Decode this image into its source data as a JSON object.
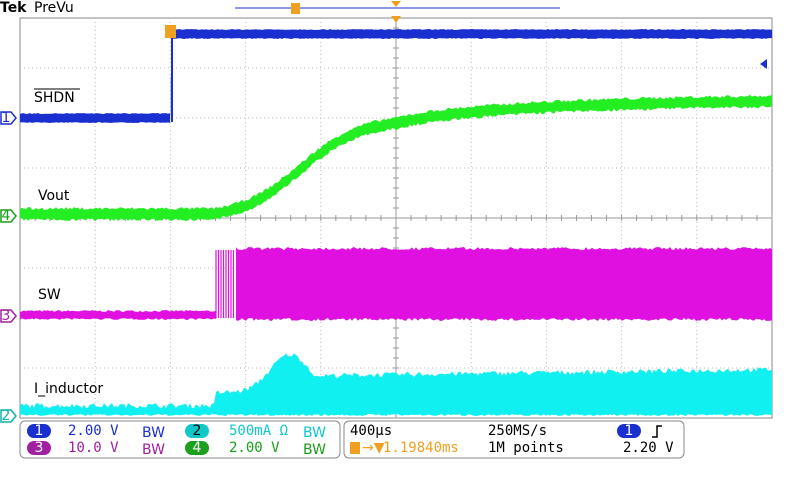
{
  "header": {
    "brand": "Tek",
    "mode": "PreVu"
  },
  "traces": [
    {
      "channel": "1",
      "label": "SHDN"
    },
    {
      "channel": "4",
      "label": "Vout"
    },
    {
      "channel": "3",
      "label": "SW"
    },
    {
      "channel": "2",
      "label": "I_inductor"
    }
  ],
  "readout": {
    "channels": [
      {
        "channel": "1",
        "scale": "2.00 V"
      },
      {
        "channel": "3",
        "scale": "10.0 V"
      },
      {
        "channel": "2",
        "scale": "500mA Ω"
      },
      {
        "channel": "4",
        "scale": "2.00 V"
      }
    ],
    "timebase": "400µs",
    "sample_rate": "250MS/s",
    "record_length": "1M points",
    "trigger_position": "1.19840ms",
    "trigger_channel": "1",
    "trigger_level": "2.20 V"
  }
}
